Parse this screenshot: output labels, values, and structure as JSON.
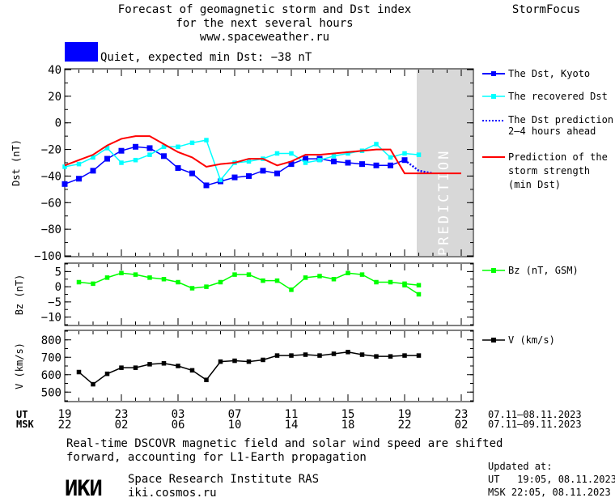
{
  "header": {
    "title_line1": "Forecast of geomagnetic storm and Dst index",
    "title_line2": "for the next several hours",
    "url": "www.spaceweather.ru",
    "brand": "StormFocus"
  },
  "status": {
    "text": "Quiet, expected min Dst: −38 nT",
    "color": "#0000ff"
  },
  "prediction_label": "PREDICTION",
  "time_axis": {
    "ut_label": "UT",
    "msk_label": "MSK",
    "ut_ticks": [
      "19",
      "23",
      "03",
      "07",
      "11",
      "15",
      "19",
      "23"
    ],
    "msk_ticks": [
      "22",
      "02",
      "06",
      "10",
      "14",
      "18",
      "22",
      "02"
    ],
    "ut_range": "07.11–08.11.2023",
    "msk_range": "07.11–09.11.2023"
  },
  "chart_data": [
    {
      "type": "line",
      "ylabel": "Dst (nT)",
      "ylim": [
        -100,
        40
      ],
      "yticks": [
        "40",
        "20",
        "0",
        "−20",
        "−40",
        "−60",
        "−80",
        "−100"
      ],
      "x_hours": [
        0,
        1,
        2,
        3,
        4,
        5,
        6,
        7,
        8,
        9,
        10,
        11,
        12,
        13,
        14,
        15,
        16,
        17,
        18,
        19,
        20,
        21,
        22,
        23,
        24
      ],
      "prediction_start_hour": 24,
      "series": [
        {
          "name": "The Dst, Kyoto",
          "color": "#0000ff",
          "marker": "square",
          "x": [
            0,
            1,
            2,
            3,
            4,
            5,
            6,
            7,
            8,
            9,
            10,
            11,
            12,
            13,
            14,
            15,
            16,
            17,
            18,
            19,
            20,
            21,
            22,
            23,
            24
          ],
          "values": [
            -46,
            -42,
            -36,
            -27,
            -21,
            -18,
            -19,
            -25,
            -34,
            -38,
            -47,
            -44,
            -41,
            -40,
            -36,
            -38,
            -31,
            -27,
            -27,
            -29,
            -30,
            -31,
            -32,
            -32,
            -28
          ]
        },
        {
          "name": "The recovered Dst",
          "color": "#00ffff",
          "marker": "square",
          "x": [
            0,
            1,
            2,
            3,
            4,
            5,
            6,
            7,
            8,
            9,
            10,
            11,
            12,
            13,
            14,
            15,
            16,
            17,
            18,
            19,
            20,
            21,
            22,
            23,
            24,
            25
          ],
          "values": [
            -33,
            -31,
            -26,
            -19,
            -30,
            -28,
            -24,
            -18,
            -18,
            -15,
            -13,
            -43,
            -30,
            -29,
            -27,
            -23,
            -23,
            -30,
            -28,
            -25,
            -23,
            -21,
            -16,
            -26,
            -23,
            -24
          ]
        },
        {
          "name": "The Dst prediction 2–4 hours ahead",
          "color": "#0000ff",
          "style": "dotted",
          "x": [
            24,
            25,
            26
          ],
          "values": [
            -28,
            -36,
            -38
          ]
        },
        {
          "name": "Prediction of the storm strength (min Dst)",
          "color": "#ff0000",
          "x": [
            0,
            1,
            2,
            3,
            4,
            5,
            6,
            7,
            8,
            9,
            10,
            11,
            12,
            13,
            14,
            15,
            16,
            17,
            18,
            19,
            20,
            21,
            22,
            23,
            24,
            28
          ],
          "values": [
            -32,
            -28,
            -24,
            -17,
            -12,
            -10,
            -10,
            -16,
            -22,
            -26,
            -33,
            -31,
            -30,
            -27,
            -27,
            -32,
            -29,
            -24,
            -24,
            -23,
            -22,
            -21,
            -20,
            -20,
            -38,
            -38
          ]
        }
      ]
    },
    {
      "type": "line",
      "ylabel": "Bz (nT)",
      "ylim": [
        -12.5,
        7.5
      ],
      "yticks": [
        "5",
        "0",
        "−5",
        "−10"
      ],
      "series": [
        {
          "name": "Bz (nT, GSM)",
          "color": "#00ff00",
          "marker": "square",
          "x": [
            1,
            2,
            3,
            4,
            5,
            6,
            7,
            8,
            9,
            10,
            11,
            12,
            13,
            14,
            15,
            16,
            17,
            18,
            19,
            20,
            21,
            22,
            23,
            24,
            25
          ],
          "values": [
            1.5,
            1.0,
            3.0,
            4.5,
            4.0,
            3.0,
            2.5,
            1.5,
            -0.5,
            0.0,
            1.5,
            4.0,
            4.0,
            2.0,
            2.0,
            -1.0,
            3.0,
            3.5,
            2.5,
            4.5,
            4.0,
            1.5,
            1.5,
            1.0,
            0.5
          ]
        },
        {
          "name": "",
          "color": "#00ff00",
          "marker": "square",
          "x": [
            24,
            25
          ],
          "values": [
            0.5,
            -2.5
          ]
        }
      ]
    },
    {
      "type": "line",
      "ylabel": "V (km/s)",
      "ylim": [
        450,
        850
      ],
      "yticks": [
        "800",
        "700",
        "600",
        "500"
      ],
      "series": [
        {
          "name": "V (km/s)",
          "color": "#000000",
          "marker": "square",
          "x": [
            1,
            2,
            3,
            4,
            5,
            6,
            7,
            8,
            9,
            10,
            11,
            12,
            13,
            14,
            15,
            16,
            17,
            18,
            19,
            20,
            21,
            22,
            23,
            24,
            25
          ],
          "values": [
            615,
            545,
            605,
            640,
            640,
            660,
            665,
            650,
            625,
            570,
            675,
            680,
            675,
            685,
            710,
            710,
            715,
            710,
            720,
            730,
            715,
            705,
            705,
            710,
            710
          ]
        }
      ]
    }
  ],
  "legend": {
    "dst_kyoto": "The Dst, Kyoto",
    "recovered": "The recovered Dst",
    "pred_line1": "The Dst prediction",
    "pred_line2": "2–4 hours ahead",
    "strength_line1": "Prediction of the",
    "strength_line2": "storm strength",
    "strength_line3": "(min Dst)",
    "bz": "Bz (nT, GSM)",
    "v": "V (km/s)"
  },
  "footer": {
    "note_line1": "Real-time DSCOVR magnetic field and solar wind speed are shifted",
    "note_line2": "forward, accounting for L1-Earth propagation",
    "logo_text": "ИКИ",
    "institute": "Space Research Institute RAS",
    "site": "iki.cosmos.ru",
    "updated_label": "Updated at:",
    "updated_ut": "UT   19:05, 08.11.2023",
    "updated_msk": "MSK 22:05, 08.11.2023"
  }
}
